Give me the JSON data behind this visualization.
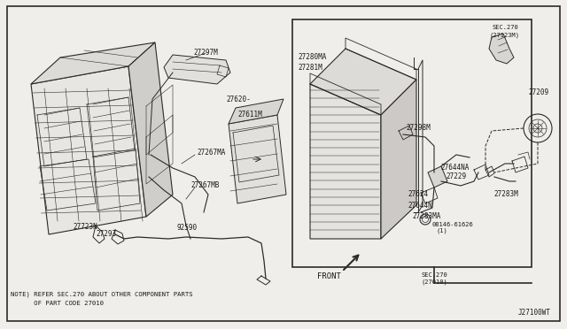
{
  "background_color": "#f0eeeb",
  "line_color": "#2a2a2a",
  "text_color": "#1a1a1a",
  "fig_width": 6.4,
  "fig_height": 3.72,
  "dpi": 100,
  "diagram_id": "J27100WT",
  "note_text_1": "NOTE) REFER SEC.270 ABOUT OTHER COMPONENT PARTS",
  "note_text_2": "      OF PART CODE 27010",
  "sec_270_top": "SEC.270\n(27123M)",
  "sec_270_bottom": "SEC.270\n(27010)",
  "front_label": "FRONT",
  "outer_border": [
    0.012,
    0.02,
    0.976,
    0.955
  ]
}
